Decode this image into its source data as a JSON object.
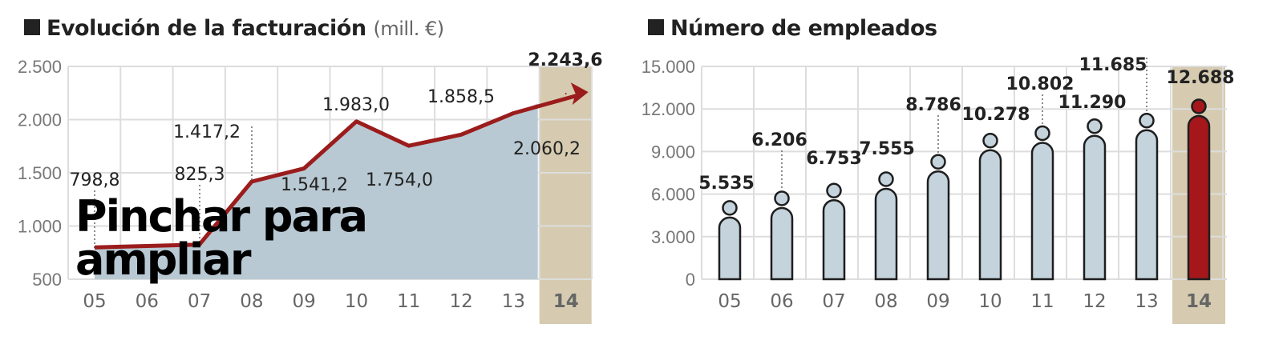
{
  "overlay_text": "Pinchar para ampliar",
  "chart_data": [
    {
      "type": "area",
      "title": "Evolución de la facturación",
      "unit": "(mill. €)",
      "categories": [
        "05",
        "06",
        "07",
        "08",
        "09",
        "10",
        "11",
        "12",
        "13",
        "14"
      ],
      "values": [
        798.8,
        null,
        825.3,
        1417.2,
        1541.2,
        1983.0,
        1754.0,
        1858.5,
        2060.2,
        2243.6
      ],
      "labels": [
        "798,8",
        "",
        "825,3",
        "1.417,2",
        "1.541,2",
        "1.983,0",
        "1.754,0",
        "1.858,5",
        "2.060,2",
        "2.243,6"
      ],
      "highlight": "14",
      "ylim": [
        500,
        2500
      ],
      "yticks": [
        "500",
        "1.000",
        "1.500",
        "2.000",
        "2.500"
      ],
      "grid": true,
      "colors": {
        "line": "#9b1c1c",
        "fill": "#b9c9d3",
        "highlight": "#d6cbb0"
      }
    },
    {
      "type": "bar",
      "title": "Número de empleados",
      "categories": [
        "05",
        "06",
        "07",
        "08",
        "09",
        "10",
        "11",
        "12",
        "13",
        "14"
      ],
      "values": [
        5535,
        6206,
        6753,
        7555,
        8786,
        10278,
        10802,
        11290,
        11685,
        12688
      ],
      "labels": [
        "5.535",
        "6.206",
        "6.753",
        "7.555",
        "8.786",
        "10.278",
        "10.802",
        "11.290",
        "11.685",
        "12.688"
      ],
      "highlight": "14",
      "ylim": [
        0,
        15000
      ],
      "yticks": [
        "0",
        "3.000",
        "6.000",
        "9.000",
        "12.000",
        "15.000"
      ],
      "grid": true,
      "colors": {
        "bar": "#c4d3dc",
        "highlight_bar": "#a5171b",
        "highlight": "#d6cbb0",
        "outline": "#1e1e1e"
      }
    }
  ]
}
